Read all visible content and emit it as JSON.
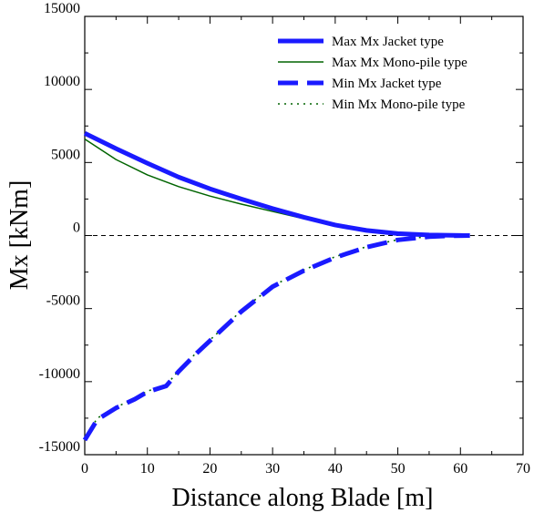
{
  "chart_data": {
    "type": "line",
    "xlabel": "Distance along Blade [m]",
    "ylabel": "Mx  [kNm]",
    "xlim": [
      0,
      70
    ],
    "ylim": [
      -15000,
      15000
    ],
    "xticks": [
      0,
      10,
      20,
      30,
      40,
      50,
      60,
      70
    ],
    "yticks": [
      15000,
      10000,
      5000,
      0,
      -5000,
      -10000,
      -15000
    ],
    "zero_line": true,
    "legend_position": "top-right",
    "series": [
      {
        "name": "Max Mx Jacket type",
        "color": "#1a1aff",
        "style": "solid-thick",
        "x": [
          0,
          5,
          10,
          15,
          20,
          25,
          30,
          35,
          40,
          45,
          50,
          55,
          60,
          61.5
        ],
        "y": [
          7000,
          5950,
          4950,
          4000,
          3200,
          2500,
          1850,
          1250,
          720,
          350,
          130,
          40,
          5,
          0
        ]
      },
      {
        "name": "Max Mx Mono-pile type",
        "color": "#006400",
        "style": "solid-thin",
        "x": [
          0,
          5,
          10,
          15,
          20,
          25,
          30,
          35,
          40,
          45,
          50,
          55,
          60,
          61.5
        ],
        "y": [
          6600,
          5200,
          4150,
          3350,
          2700,
          2150,
          1650,
          1150,
          680,
          320,
          120,
          35,
          5,
          0
        ]
      },
      {
        "name": "Min Mx Jacket type",
        "color": "#1a1aff",
        "style": "dashed-thick",
        "x": [
          0,
          2,
          5,
          8,
          10,
          13,
          15,
          18,
          20,
          25,
          30,
          35,
          40,
          45,
          50,
          55,
          58,
          61.5
        ],
        "y": [
          -14000,
          -12600,
          -11800,
          -11200,
          -10700,
          -10300,
          -9300,
          -8000,
          -7200,
          -5200,
          -3500,
          -2400,
          -1500,
          -800,
          -300,
          -80,
          -20,
          0
        ]
      },
      {
        "name": "Min Mx Mono-pile type",
        "color": "#006400",
        "style": "dotted",
        "x": [
          0,
          2,
          5,
          8,
          10,
          13,
          15,
          18,
          20,
          25,
          30,
          35,
          40,
          45,
          50,
          55,
          58,
          61.5
        ],
        "y": [
          -13900,
          -12500,
          -11750,
          -11150,
          -10650,
          -10250,
          -9250,
          -7950,
          -7150,
          -5150,
          -3450,
          -2350,
          -1450,
          -760,
          -280,
          -70,
          -15,
          0
        ]
      }
    ]
  }
}
